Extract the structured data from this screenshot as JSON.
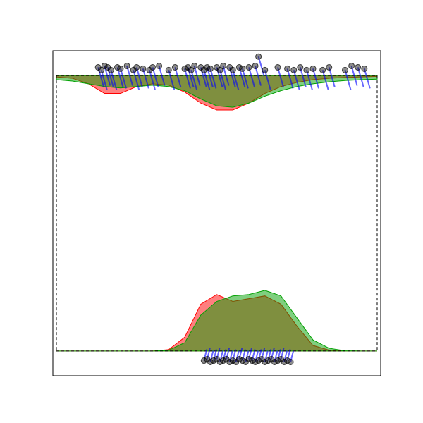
{
  "chart_data": {
    "type": "density",
    "xlim": [
      -0.011,
      1.011
    ],
    "ylim": [
      -0.09,
      1.09
    ],
    "x": [
      0,
      0.05,
      0.1,
      0.15,
      0.2,
      0.25,
      0.3,
      0.35,
      0.4,
      0.45,
      0.5,
      0.55,
      0.6,
      0.65,
      0.7,
      0.75,
      0.8,
      0.85,
      0.9,
      0.95,
      1
    ],
    "point_color": "#0000ff",
    "panels": [
      {
        "baseline": 1,
        "series": [
          {
            "color": "#ff0000",
            "values": [
              0.995,
              0.99,
              0.97,
              0.935,
              0.935,
              0.96,
              0.97,
              0.965,
              0.94,
              0.9,
              0.875,
              0.875,
              0.9,
              0.935,
              0.96,
              0.975,
              0.985,
              0.99,
              0.993,
              0.995,
              0.997
            ]
          },
          {
            "color": "#00a000",
            "values": [
              0.985,
              0.98,
              0.97,
              0.96,
              0.955,
              0.96,
              0.965,
              0.96,
              0.945,
              0.915,
              0.89,
              0.885,
              0.9,
              0.925,
              0.945,
              0.96,
              0.97,
              0.977,
              0.982,
              0.985,
              0.987
            ]
          }
        ],
        "points": {
          "x": [
            0.13,
            0.14,
            0.15,
            0.16,
            0.17,
            0.19,
            0.2,
            0.22,
            0.24,
            0.25,
            0.27,
            0.29,
            0.3,
            0.32,
            0.35,
            0.37,
            0.4,
            0.41,
            0.42,
            0.43,
            0.45,
            0.46,
            0.47,
            0.48,
            0.5,
            0.51,
            0.52,
            0.54,
            0.55,
            0.57,
            0.58,
            0.6,
            0.62,
            0.63,
            0.65,
            0.69,
            0.72,
            0.74,
            0.76,
            0.78,
            0.8,
            0.83,
            0.85,
            0.9,
            0.92,
            0.94,
            0.96
          ],
          "y": [
            1.03,
            1.02,
            1.035,
            1.03,
            1.02,
            1.03,
            1.025,
            1.035,
            1.02,
            1.03,
            1.025,
            1.02,
            1.03,
            1.035,
            1.02,
            1.03,
            1.025,
            1.03,
            1.02,
            1.035,
            1.03,
            1.02,
            1.03,
            1.025,
            1.03,
            1.02,
            1.035,
            1.03,
            1.02,
            1.03,
            1.025,
            1.03,
            1.035,
            1.069,
            1.02,
            1.03,
            1.025,
            1.02,
            1.03,
            1.02,
            1.025,
            1.02,
            1.03,
            1.02,
            1.035,
            1.03,
            1.025
          ]
        }
      },
      {
        "baseline": 0,
        "series": [
          {
            "color": "#ff0000",
            "values": [
              0,
              0,
              0,
              0,
              0,
              0,
              0,
              0.005,
              0.05,
              0.17,
              0.205,
              0.18,
              0.19,
              0.2,
              0.17,
              0.09,
              0.02,
              0.003,
              0,
              0,
              0
            ]
          },
          {
            "color": "#00a000",
            "values": [
              0,
              0,
              0,
              0,
              0,
              0,
              0,
              0.003,
              0.03,
              0.13,
              0.18,
              0.2,
              0.205,
              0.22,
              0.2,
              0.12,
              0.04,
              0.01,
              0.001,
              0,
              0
            ]
          }
        ],
        "points": {
          "x": [
            0.46,
            0.47,
            0.48,
            0.49,
            0.5,
            0.51,
            0.52,
            0.53,
            0.54,
            0.55,
            0.56,
            0.57,
            0.58,
            0.59,
            0.6,
            0.61,
            0.62,
            0.63,
            0.64,
            0.65,
            0.66,
            0.67,
            0.68,
            0.69,
            0.7,
            0.71,
            0.72,
            0.73
          ],
          "y": [
            -0.035,
            -0.03,
            -0.04,
            -0.035,
            -0.03,
            -0.04,
            -0.035,
            -0.03,
            -0.04,
            -0.035,
            -0.04,
            -0.03,
            -0.035,
            -0.04,
            -0.03,
            -0.035,
            -0.04,
            -0.035,
            -0.03,
            -0.04,
            -0.035,
            -0.03,
            -0.04,
            -0.035,
            -0.03,
            -0.04,
            -0.035,
            -0.04
          ]
        }
      }
    ]
  }
}
